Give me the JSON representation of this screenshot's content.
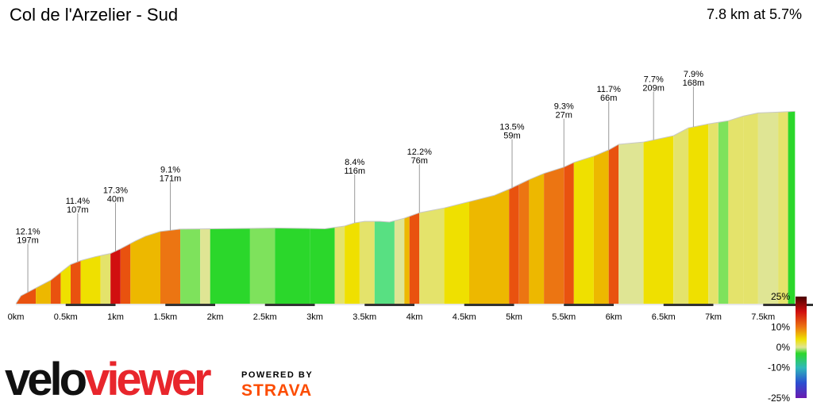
{
  "header": {
    "title": "Col de l'Arzelier - Sud",
    "summary": "7.8 km at 5.7%"
  },
  "brand": {
    "logo_part1": "velo",
    "logo_part2": "viewer",
    "powered_by": "POWERED BY",
    "partner": "STRAVA"
  },
  "colors": {
    "grade_gt_14": "#d10f0f",
    "grade_10_14": "#e9520f",
    "grade_8_10": "#ec7512",
    "grade_6_8": "#edb800",
    "grade_5_6": "#efe000",
    "grade_3_5": "#e4e36b",
    "grade_1_3": "#dfe594",
    "grade_0_1": "#7ee25c",
    "grade_lt_0": "#2bd72b",
    "descent": "#58e082",
    "km_bar": "#333333"
  },
  "chart_data": {
    "type": "area",
    "x_unit": "km",
    "xlim": [
      0,
      7.8
    ],
    "x_ticks": [
      "0km",
      "0.5km",
      "1km",
      "1.5km",
      "2km",
      "2.5km",
      "3km",
      "3.5km",
      "4km",
      "4.5km",
      "5km",
      "5.5km",
      "6km",
      "6.5km",
      "7km",
      "7.5km"
    ],
    "profile": [
      [
        0.0,
        0
      ],
      [
        0.05,
        1
      ],
      [
        0.2,
        2
      ],
      [
        0.35,
        3
      ],
      [
        0.45,
        4
      ],
      [
        0.55,
        5
      ],
      [
        0.65,
        5.5
      ],
      [
        0.8,
        6
      ],
      [
        0.95,
        6.4
      ],
      [
        1.05,
        7
      ],
      [
        1.2,
        8
      ],
      [
        1.3,
        8.6
      ],
      [
        1.45,
        9.2
      ],
      [
        1.65,
        9.5
      ],
      [
        1.95,
        9.55
      ],
      [
        2.35,
        9.6
      ],
      [
        2.6,
        9.65
      ],
      [
        2.9,
        9.6
      ],
      [
        3.1,
        9.55
      ],
      [
        3.3,
        9.9
      ],
      [
        3.4,
        10.3
      ],
      [
        3.5,
        10.5
      ],
      [
        3.65,
        10.5
      ],
      [
        3.75,
        10.4
      ],
      [
        3.9,
        10.9
      ],
      [
        4.05,
        11.6
      ],
      [
        4.3,
        12.2
      ],
      [
        4.55,
        13
      ],
      [
        4.8,
        13.8
      ],
      [
        4.95,
        14.6
      ],
      [
        5.05,
        15.2
      ],
      [
        5.15,
        15.8
      ],
      [
        5.3,
        16.6
      ],
      [
        5.5,
        17.4
      ],
      [
        5.6,
        18.0
      ],
      [
        5.8,
        18.8
      ],
      [
        5.95,
        19.6
      ],
      [
        6.05,
        20.3
      ],
      [
        6.3,
        20.6
      ],
      [
        6.6,
        21.4
      ],
      [
        6.75,
        22.4
      ],
      [
        6.95,
        22.9
      ],
      [
        7.15,
        23.3
      ],
      [
        7.3,
        23.9
      ],
      [
        7.45,
        24.3
      ],
      [
        7.65,
        24.4
      ],
      [
        7.82,
        24.5
      ]
    ],
    "segments": [
      {
        "from": 0.0,
        "to": 0.2,
        "grade": 10
      },
      {
        "from": 0.2,
        "to": 0.35,
        "grade": 7
      },
      {
        "from": 0.35,
        "to": 0.45,
        "grade": 10
      },
      {
        "from": 0.45,
        "to": 0.55,
        "grade": 5
      },
      {
        "from": 0.55,
        "to": 0.65,
        "grade": 10
      },
      {
        "from": 0.65,
        "to": 0.85,
        "grade": 5.5
      },
      {
        "from": 0.85,
        "to": 0.95,
        "grade": 4
      },
      {
        "from": 0.95,
        "to": 1.05,
        "grade": 15
      },
      {
        "from": 1.05,
        "to": 1.15,
        "grade": 12
      },
      {
        "from": 1.15,
        "to": 1.45,
        "grade": 6.5
      },
      {
        "from": 1.45,
        "to": 1.65,
        "grade": 8
      },
      {
        "from": 1.65,
        "to": 1.85,
        "grade": 0.5
      },
      {
        "from": 1.85,
        "to": 1.95,
        "grade": 2
      },
      {
        "from": 1.95,
        "to": 2.35,
        "grade": -1
      },
      {
        "from": 2.35,
        "to": 2.6,
        "grade": 0.5
      },
      {
        "from": 2.6,
        "to": 2.95,
        "grade": -1
      },
      {
        "from": 2.95,
        "to": 3.2,
        "grade": -0.5
      },
      {
        "from": 3.2,
        "to": 3.3,
        "grade": 3
      },
      {
        "from": 3.3,
        "to": 3.45,
        "grade": 5.5
      },
      {
        "from": 3.45,
        "to": 3.6,
        "grade": 3
      },
      {
        "from": 3.6,
        "to": 3.8,
        "grade": -2
      },
      {
        "from": 3.8,
        "to": 3.9,
        "grade": 2
      },
      {
        "from": 3.9,
        "to": 3.95,
        "grade": 7
      },
      {
        "from": 3.95,
        "to": 4.05,
        "grade": 10
      },
      {
        "from": 4.05,
        "to": 4.3,
        "grade": 3.5
      },
      {
        "from": 4.3,
        "to": 4.55,
        "grade": 5.5
      },
      {
        "from": 4.55,
        "to": 4.95,
        "grade": 7
      },
      {
        "from": 4.95,
        "to": 5.05,
        "grade": 12
      },
      {
        "from": 5.05,
        "to": 5.15,
        "grade": 8
      },
      {
        "from": 5.15,
        "to": 5.3,
        "grade": 6
      },
      {
        "from": 5.3,
        "to": 5.5,
        "grade": 9
      },
      {
        "from": 5.5,
        "to": 5.6,
        "grade": 11
      },
      {
        "from": 5.6,
        "to": 5.8,
        "grade": 5.5
      },
      {
        "from": 5.8,
        "to": 5.95,
        "grade": 7
      },
      {
        "from": 5.95,
        "to": 6.05,
        "grade": 11
      },
      {
        "from": 6.05,
        "to": 6.3,
        "grade": 2
      },
      {
        "from": 6.3,
        "to": 6.6,
        "grade": 5.5
      },
      {
        "from": 6.6,
        "to": 6.75,
        "grade": 4
      },
      {
        "from": 6.75,
        "to": 6.95,
        "grade": 5.5
      },
      {
        "from": 6.95,
        "to": 7.05,
        "grade": 3
      },
      {
        "from": 7.05,
        "to": 7.15,
        "grade": 0.5
      },
      {
        "from": 7.15,
        "to": 7.3,
        "grade": 3
      },
      {
        "from": 7.3,
        "to": 7.45,
        "grade": 4
      },
      {
        "from": 7.45,
        "to": 7.65,
        "grade": 2
      },
      {
        "from": 7.65,
        "to": 7.75,
        "grade": 3
      },
      {
        "from": 7.75,
        "to": 7.82,
        "grade": -1
      }
    ],
    "annotations": [
      {
        "x": 0.12,
        "grade": "12.1%",
        "length": "197m"
      },
      {
        "x": 0.62,
        "grade": "11.4%",
        "length": "107m"
      },
      {
        "x": 1.0,
        "grade": "17.3%",
        "length": "40m"
      },
      {
        "x": 1.55,
        "grade": "9.1%",
        "length": "171m"
      },
      {
        "x": 3.4,
        "grade": "8.4%",
        "length": "116m"
      },
      {
        "x": 4.05,
        "grade": "12.2%",
        "length": "76m"
      },
      {
        "x": 4.98,
        "grade": "13.5%",
        "length": "59m"
      },
      {
        "x": 5.5,
        "grade": "9.3%",
        "length": "27m"
      },
      {
        "x": 5.95,
        "grade": "11.7%",
        "length": "66m"
      },
      {
        "x": 6.4,
        "grade": "7.7%",
        "length": "209m"
      },
      {
        "x": 6.8,
        "grade": "7.9%",
        "length": "168m"
      }
    ],
    "legend": {
      "type": "gradient",
      "ticks": [
        "25%",
        "10%",
        "0%",
        "-10%",
        "-25%"
      ],
      "tick_values": [
        25,
        10,
        0,
        -10,
        -25
      ]
    }
  }
}
